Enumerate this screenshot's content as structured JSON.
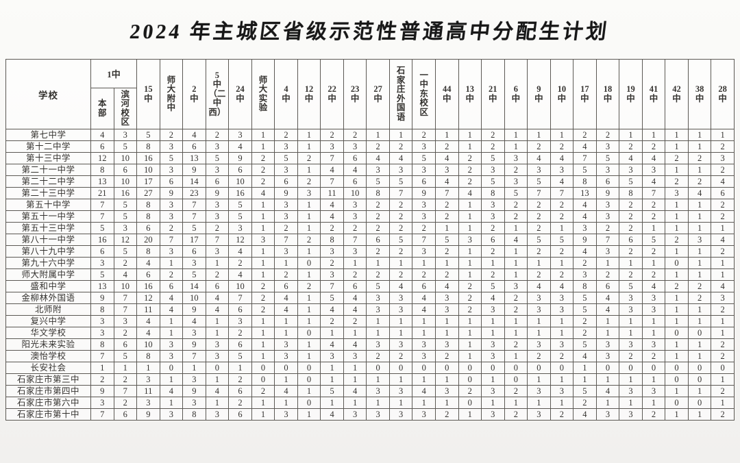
{
  "title": "2024 年主城区省级示范性普通高中分配生计划",
  "table": {
    "school_header": "学校",
    "group_header": {
      "label": "1中",
      "subcolumns": [
        "本部",
        "滨河校区"
      ]
    },
    "columns": [
      "15中",
      "师大附中",
      "2中",
      "5中（二中西）",
      "24中",
      "师大实验",
      "4中",
      "12中",
      "22中",
      "23中",
      "27中",
      "石家庄外国语",
      "一中东校区",
      "44中",
      "13中",
      "21中",
      "6中",
      "9中",
      "10中",
      "17中",
      "18中",
      "19中",
      "41中",
      "42中",
      "38中",
      "28中"
    ],
    "rows": [
      {
        "name": "第七中学",
        "values": [
          4,
          3,
          5,
          2,
          4,
          2,
          3,
          1,
          2,
          1,
          2,
          2,
          1,
          1,
          2,
          1,
          1,
          2,
          1,
          1,
          1,
          2,
          2,
          1,
          1,
          1,
          1,
          1
        ]
      },
      {
        "name": "第十二中学",
        "values": [
          6,
          5,
          8,
          3,
          6,
          3,
          4,
          1,
          3,
          1,
          3,
          3,
          2,
          2,
          3,
          2,
          1,
          2,
          1,
          2,
          2,
          4,
          3,
          2,
          2,
          1,
          1,
          2
        ]
      },
      {
        "name": "第十三中学",
        "values": [
          12,
          10,
          16,
          5,
          13,
          5,
          9,
          2,
          5,
          2,
          7,
          6,
          4,
          4,
          5,
          4,
          2,
          5,
          3,
          4,
          4,
          7,
          5,
          4,
          4,
          2,
          2,
          3
        ]
      },
      {
        "name": "第二十一中学",
        "values": [
          8,
          6,
          10,
          3,
          9,
          3,
          6,
          2,
          3,
          1,
          4,
          4,
          3,
          3,
          3,
          3,
          2,
          3,
          2,
          3,
          3,
          5,
          3,
          3,
          3,
          1,
          1,
          2
        ]
      },
      {
        "name": "第二十二中学",
        "values": [
          13,
          10,
          17,
          6,
          14,
          6,
          10,
          2,
          6,
          2,
          7,
          6,
          5,
          5,
          6,
          4,
          2,
          5,
          3,
          5,
          4,
          8,
          6,
          5,
          4,
          2,
          2,
          4
        ]
      },
      {
        "name": "第二十三中学",
        "values": [
          21,
          16,
          27,
          9,
          23,
          9,
          16,
          4,
          9,
          3,
          11,
          10,
          8,
          7,
          9,
          7,
          4,
          8,
          5,
          7,
          7,
          13,
          9,
          8,
          7,
          3,
          4,
          6
        ]
      },
      {
        "name": "第五十中学",
        "values": [
          7,
          5,
          8,
          3,
          7,
          3,
          5,
          1,
          3,
          1,
          4,
          3,
          2,
          2,
          3,
          2,
          1,
          3,
          2,
          2,
          2,
          4,
          3,
          2,
          2,
          1,
          1,
          2
        ]
      },
      {
        "name": "第五十一中学",
        "values": [
          7,
          5,
          8,
          3,
          7,
          3,
          5,
          1,
          3,
          1,
          4,
          3,
          2,
          2,
          3,
          2,
          1,
          3,
          2,
          2,
          2,
          4,
          3,
          2,
          2,
          1,
          1,
          2
        ]
      },
      {
        "name": "第五十三中学",
        "values": [
          5,
          3,
          6,
          2,
          5,
          2,
          3,
          1,
          2,
          1,
          2,
          2,
          2,
          2,
          2,
          1,
          1,
          2,
          1,
          2,
          1,
          3,
          2,
          2,
          1,
          1,
          1,
          1
        ]
      },
      {
        "name": "第八十一中学",
        "values": [
          16,
          12,
          20,
          7,
          17,
          7,
          12,
          3,
          7,
          2,
          8,
          7,
          6,
          5,
          7,
          5,
          3,
          6,
          4,
          5,
          5,
          9,
          7,
          6,
          5,
          2,
          3,
          4
        ]
      },
      {
        "name": "第八十九中学",
        "values": [
          6,
          5,
          8,
          3,
          6,
          3,
          4,
          1,
          3,
          1,
          3,
          3,
          2,
          2,
          3,
          2,
          1,
          2,
          1,
          2,
          2,
          4,
          3,
          2,
          2,
          1,
          1,
          2
        ]
      },
      {
        "name": "第九十六中学",
        "values": [
          3,
          2,
          4,
          1,
          3,
          1,
          2,
          1,
          1,
          0,
          2,
          1,
          1,
          1,
          1,
          1,
          1,
          1,
          1,
          1,
          1,
          2,
          1,
          1,
          1,
          0,
          1,
          1
        ]
      },
      {
        "name": "师大附属中学",
        "values": [
          5,
          4,
          6,
          2,
          5,
          2,
          4,
          1,
          2,
          1,
          3,
          2,
          2,
          2,
          2,
          2,
          1,
          2,
          1,
          2,
          2,
          3,
          2,
          2,
          2,
          1,
          1,
          1
        ]
      },
      {
        "name": "盛和中学",
        "values": [
          13,
          10,
          16,
          6,
          14,
          6,
          10,
          2,
          6,
          2,
          7,
          6,
          5,
          4,
          6,
          4,
          2,
          5,
          3,
          4,
          4,
          8,
          6,
          5,
          4,
          2,
          2,
          4
        ]
      },
      {
        "name": "金柳林外国语",
        "values": [
          9,
          7,
          12,
          4,
          10,
          4,
          7,
          2,
          4,
          1,
          5,
          4,
          3,
          3,
          4,
          3,
          2,
          4,
          2,
          3,
          3,
          5,
          4,
          3,
          3,
          1,
          2,
          3
        ]
      },
      {
        "name": "北师附",
        "values": [
          8,
          7,
          11,
          4,
          9,
          4,
          6,
          2,
          4,
          1,
          4,
          4,
          3,
          3,
          4,
          3,
          2,
          3,
          2,
          3,
          3,
          5,
          4,
          3,
          3,
          1,
          1,
          2
        ]
      },
      {
        "name": "复兴中学",
        "values": [
          3,
          3,
          4,
          1,
          4,
          1,
          3,
          1,
          1,
          1,
          2,
          2,
          1,
          1,
          1,
          1,
          1,
          1,
          1,
          1,
          1,
          2,
          1,
          1,
          1,
          1,
          1,
          1
        ]
      },
      {
        "name": "华文学校",
        "values": [
          3,
          2,
          4,
          1,
          3,
          1,
          2,
          1,
          1,
          0,
          1,
          1,
          1,
          1,
          1,
          1,
          1,
          1,
          1,
          1,
          1,
          2,
          1,
          1,
          1,
          0,
          0,
          1
        ]
      },
      {
        "name": "阳光未来实验",
        "values": [
          8,
          6,
          10,
          3,
          9,
          3,
          6,
          1,
          3,
          1,
          4,
          4,
          3,
          3,
          3,
          3,
          1,
          3,
          2,
          3,
          3,
          5,
          3,
          3,
          3,
          1,
          1,
          2
        ]
      },
      {
        "name": "澳怡学校",
        "values": [
          7,
          5,
          8,
          3,
          7,
          3,
          5,
          1,
          3,
          1,
          3,
          3,
          2,
          2,
          3,
          2,
          1,
          3,
          1,
          2,
          2,
          4,
          3,
          2,
          2,
          1,
          1,
          2
        ]
      },
      {
        "name": "长安社会",
        "values": [
          1,
          1,
          1,
          0,
          1,
          0,
          1,
          0,
          0,
          0,
          1,
          1,
          0,
          0,
          0,
          0,
          0,
          0,
          0,
          0,
          0,
          1,
          0,
          0,
          0,
          0,
          0,
          0
        ]
      },
      {
        "name": "石家庄市第三中",
        "values": [
          2,
          2,
          3,
          1,
          3,
          1,
          2,
          0,
          1,
          0,
          1,
          1,
          1,
          1,
          1,
          1,
          0,
          1,
          0,
          1,
          1,
          1,
          1,
          1,
          1,
          0,
          0,
          1
        ]
      },
      {
        "name": "石家庄市第四中",
        "values": [
          9,
          7,
          11,
          4,
          9,
          4,
          6,
          2,
          4,
          1,
          5,
          4,
          3,
          3,
          4,
          3,
          2,
          3,
          2,
          3,
          3,
          5,
          4,
          3,
          3,
          1,
          1,
          2
        ]
      },
      {
        "name": "石家庄市第六中",
        "values": [
          3,
          2,
          3,
          1,
          3,
          1,
          2,
          1,
          1,
          0,
          1,
          1,
          1,
          1,
          1,
          1,
          0,
          1,
          1,
          1,
          1,
          2,
          1,
          1,
          1,
          0,
          0,
          1
        ]
      },
      {
        "name": "石家庄市第十中",
        "values": [
          7,
          6,
          9,
          3,
          8,
          3,
          6,
          1,
          3,
          1,
          4,
          3,
          3,
          3,
          3,
          2,
          1,
          3,
          2,
          3,
          2,
          4,
          3,
          3,
          2,
          1,
          1,
          2
        ]
      }
    ]
  }
}
